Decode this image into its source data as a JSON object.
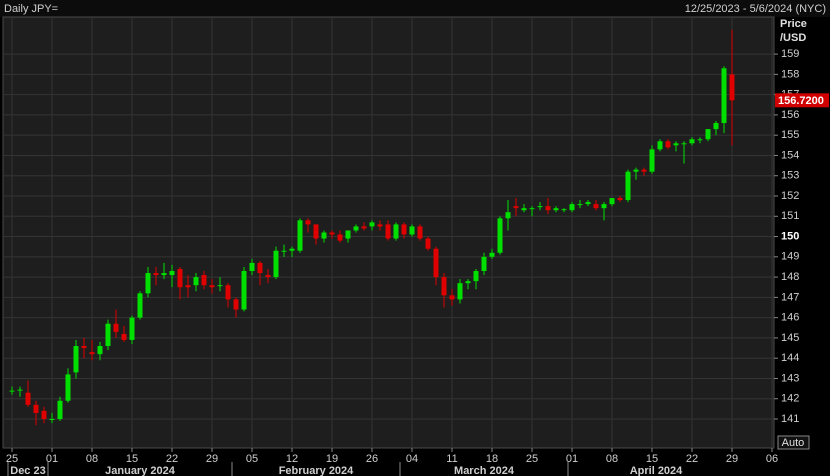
{
  "chart_data": {
    "type": "candlestick",
    "title": "Daily JPY=",
    "subtitle": "12/25/2023 - 5/6/2024 (NYC)",
    "ylabel_lines": [
      "Price",
      "/USD"
    ],
    "up_color": "#00e000",
    "down_color": "#e00000",
    "ylim": [
      139.57,
      160.78
    ],
    "yticks": [
      141,
      142,
      143,
      144,
      145,
      146,
      147,
      148,
      149,
      150,
      151,
      152,
      153,
      154,
      155,
      156,
      157,
      158,
      159
    ],
    "highlight_tick": 150,
    "last_price": {
      "value": 156.72,
      "label": "156.7200"
    },
    "button": "Auto",
    "grid": true,
    "categories": [
      "25",
      null,
      null,
      null,
      null,
      "01",
      null,
      null,
      null,
      null,
      "08",
      null,
      null,
      null,
      null,
      "15",
      null,
      null,
      null,
      null,
      "22",
      null,
      null,
      null,
      null,
      "29",
      null,
      null,
      null,
      null,
      "05",
      null,
      null,
      null,
      null,
      "12",
      null,
      null,
      null,
      null,
      "19",
      null,
      null,
      null,
      null,
      "26",
      null,
      null,
      null,
      null,
      "04",
      null,
      null,
      null,
      null,
      "11",
      null,
      null,
      null,
      null,
      "18",
      null,
      null,
      null,
      null,
      "25",
      null,
      null,
      null,
      null,
      "01",
      null,
      null,
      null,
      null,
      "08",
      null,
      null,
      null,
      null,
      "15",
      null,
      null,
      null,
      null,
      "22",
      null,
      null,
      null,
      null,
      "29",
      null,
      null,
      null,
      null,
      "06"
    ],
    "months": [
      {
        "label": "Dec 23",
        "first": 0,
        "last": 4
      },
      {
        "label": "January 2024",
        "first": 5,
        "last": 27
      },
      {
        "label": "February 2024",
        "first": 28,
        "last": 48
      },
      {
        "label": "March 2024",
        "first": 49,
        "last": 69
      },
      {
        "label": "April 2024",
        "first": 70,
        "last": 91
      }
    ],
    "ohlc": [
      [
        142.4,
        142.6,
        142.2,
        142.4
      ],
      [
        142.4,
        142.6,
        142.1,
        142.45
      ],
      [
        142.3,
        142.9,
        141.6,
        141.7
      ],
      [
        141.7,
        141.9,
        140.7,
        141.3
      ],
      [
        141.4,
        141.6,
        140.8,
        141.0
      ],
      [
        141.0,
        141.3,
        140.8,
        141.0
      ],
      [
        141.0,
        142.1,
        140.9,
        141.9
      ],
      [
        141.9,
        143.5,
        141.8,
        143.2
      ],
      [
        143.3,
        144.9,
        143.0,
        144.6
      ],
      [
        144.6,
        145.0,
        144.0,
        144.5
      ],
      [
        144.3,
        144.9,
        143.9,
        144.2
      ],
      [
        144.2,
        144.8,
        143.9,
        144.6
      ],
      [
        144.6,
        145.9,
        144.4,
        145.7
      ],
      [
        145.7,
        146.4,
        145.0,
        145.3
      ],
      [
        145.2,
        145.6,
        144.8,
        144.9
      ],
      [
        144.9,
        146.1,
        144.7,
        146.0
      ],
      [
        146.0,
        147.3,
        145.9,
        147.2
      ],
      [
        147.2,
        148.5,
        147.0,
        148.2
      ],
      [
        148.2,
        148.5,
        147.6,
        148.1
      ],
      [
        148.1,
        148.7,
        147.9,
        148.2
      ],
      [
        148.1,
        148.6,
        147.5,
        148.3
      ],
      [
        148.4,
        148.5,
        146.9,
        147.5
      ],
      [
        147.6,
        148.1,
        147.0,
        147.5
      ],
      [
        147.6,
        148.2,
        147.3,
        148.0
      ],
      [
        148.1,
        148.3,
        147.4,
        147.6
      ],
      [
        147.6,
        147.9,
        147.2,
        147.5
      ],
      [
        147.6,
        148.0,
        147.3,
        147.6
      ],
      [
        147.6,
        147.7,
        146.5,
        146.9
      ],
      [
        146.9,
        147.0,
        146.0,
        146.4
      ],
      [
        146.4,
        148.5,
        146.3,
        148.3
      ],
      [
        148.3,
        148.9,
        148.1,
        148.7
      ],
      [
        148.7,
        148.8,
        147.6,
        148.2
      ],
      [
        148.1,
        148.4,
        147.7,
        148.0
      ],
      [
        148.0,
        149.5,
        147.9,
        149.3
      ],
      [
        149.3,
        149.6,
        149.0,
        149.3
      ],
      [
        149.3,
        149.5,
        149.0,
        149.4
      ],
      [
        149.3,
        150.9,
        149.2,
        150.8
      ],
      [
        150.8,
        150.9,
        150.2,
        150.6
      ],
      [
        150.6,
        150.6,
        149.6,
        149.9
      ],
      [
        149.9,
        150.3,
        149.7,
        150.2
      ],
      [
        150.2,
        150.3,
        149.9,
        150.1
      ],
      [
        150.1,
        150.3,
        149.7,
        149.8
      ],
      [
        149.9,
        150.3,
        149.7,
        150.3
      ],
      [
        150.3,
        150.6,
        150.2,
        150.5
      ],
      [
        150.5,
        150.7,
        150.3,
        150.4
      ],
      [
        150.5,
        150.8,
        150.3,
        150.7
      ],
      [
        150.6,
        150.8,
        150.3,
        150.5
      ],
      [
        150.6,
        150.8,
        149.8,
        149.9
      ],
      [
        149.9,
        150.7,
        149.8,
        150.6
      ],
      [
        150.6,
        150.7,
        149.9,
        150.1
      ],
      [
        150.1,
        150.6,
        150.0,
        150.5
      ],
      [
        150.5,
        150.6,
        149.8,
        149.9
      ],
      [
        149.9,
        150.0,
        149.3,
        149.4
      ],
      [
        149.4,
        149.5,
        147.6,
        148.0
      ],
      [
        148.0,
        148.2,
        146.5,
        147.1
      ],
      [
        147.1,
        147.4,
        146.6,
        146.9
      ],
      [
        146.9,
        147.9,
        146.7,
        147.7
      ],
      [
        147.7,
        147.9,
        147.4,
        147.8
      ],
      [
        147.8,
        148.4,
        147.4,
        148.3
      ],
      [
        148.3,
        149.2,
        148.1,
        149.0
      ],
      [
        149.0,
        149.4,
        148.9,
        149.2
      ],
      [
        149.2,
        151.0,
        149.1,
        150.9
      ],
      [
        150.9,
        151.8,
        150.3,
        151.2
      ],
      [
        151.5,
        151.9,
        151.0,
        151.4
      ],
      [
        151.3,
        151.6,
        151.2,
        151.4
      ],
      [
        151.4,
        151.5,
        151.0,
        151.4
      ],
      [
        151.5,
        151.7,
        151.3,
        151.5
      ],
      [
        151.5,
        151.9,
        151.1,
        151.3
      ],
      [
        151.3,
        151.5,
        151.2,
        151.4
      ],
      [
        151.3,
        151.4,
        151.2,
        151.35
      ],
      [
        151.3,
        151.7,
        151.2,
        151.6
      ],
      [
        151.6,
        151.8,
        151.4,
        151.6
      ],
      [
        151.6,
        151.8,
        151.5,
        151.7
      ],
      [
        151.6,
        151.8,
        151.3,
        151.4
      ],
      [
        151.4,
        151.7,
        150.8,
        151.6
      ],
      [
        151.6,
        151.9,
        151.5,
        151.9
      ],
      [
        151.9,
        152.0,
        151.7,
        151.8
      ],
      [
        151.8,
        153.3,
        151.7,
        153.2
      ],
      [
        153.2,
        153.4,
        152.8,
        153.3
      ],
      [
        153.3,
        153.4,
        153.0,
        153.2
      ],
      [
        153.2,
        154.5,
        153.1,
        154.3
      ],
      [
        154.3,
        154.8,
        154.2,
        154.7
      ],
      [
        154.7,
        154.8,
        154.3,
        154.4
      ],
      [
        154.5,
        154.7,
        154.2,
        154.6
      ],
      [
        154.6,
        154.7,
        153.6,
        154.6
      ],
      [
        154.6,
        154.9,
        154.5,
        154.8
      ],
      [
        154.8,
        154.9,
        154.6,
        154.8
      ],
      [
        154.8,
        155.3,
        154.7,
        155.3
      ],
      [
        155.3,
        155.7,
        155.0,
        155.6
      ],
      [
        155.6,
        158.4,
        155.1,
        158.3
      ],
      [
        158.0,
        160.2,
        154.5,
        156.72
      ],
      null,
      null,
      null,
      null,
      null
    ]
  }
}
